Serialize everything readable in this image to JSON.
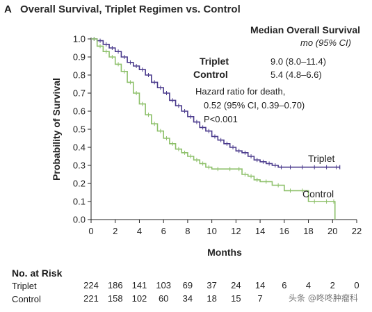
{
  "figure": {
    "panel_label": "A",
    "title": "Overall Survival, Triplet Regimen vs. Control"
  },
  "legend": {
    "header": "Median Overall Survival",
    "unit": "mo (95% CI)",
    "rows": [
      {
        "name": "Triplet",
        "value": "9.0 (8.0–11.4)"
      },
      {
        "name": "Control",
        "value": "5.4 (4.8–6.6)"
      }
    ]
  },
  "annotation": {
    "line1": "Hazard ratio for death,",
    "line2": "0.52 (95% CI, 0.39–0.70)",
    "line3": "P<0.001"
  },
  "risk_table": {
    "header": "No. at Risk",
    "rows": [
      {
        "name": "Triplet",
        "values": [
          "224",
          "186",
          "141",
          "103",
          "69",
          "37",
          "24",
          "14",
          "6",
          "4",
          "2",
          "0"
        ]
      },
      {
        "name": "Control",
        "values": [
          "221",
          "158",
          "102",
          "60",
          "34",
          "18",
          "15",
          "7",
          "",
          "",
          "",
          ""
        ]
      }
    ]
  },
  "watermark": "头条 @咚咚肿瘤科",
  "chart_data": {
    "type": "line",
    "xlabel": "Months",
    "ylabel": "Probability of Survival",
    "xlim": [
      0,
      22
    ],
    "ylim": [
      0,
      1.0
    ],
    "xticks": [
      "0",
      "2",
      "4",
      "6",
      "8",
      "10",
      "12",
      "14",
      "16",
      "18",
      "20",
      "22"
    ],
    "yticks": [
      "0.0",
      "0.1",
      "0.2",
      "0.3",
      "0.4",
      "0.5",
      "0.6",
      "0.7",
      "0.8",
      "0.9",
      "1.0"
    ],
    "grid": false,
    "series": [
      {
        "name": "Triplet",
        "color": "#4a3a8c",
        "x": [
          0,
          0.5,
          1,
          1.5,
          2,
          2.5,
          3,
          3.5,
          4,
          4.5,
          5,
          5.5,
          6,
          6.5,
          7,
          7.5,
          8,
          8.5,
          9,
          9.5,
          10,
          10.5,
          11,
          11.5,
          12,
          12.5,
          13,
          13.5,
          14,
          14.5,
          15,
          15.5,
          16,
          17,
          18,
          19,
          20,
          20.6
        ],
        "y": [
          1.0,
          0.99,
          0.97,
          0.95,
          0.93,
          0.9,
          0.87,
          0.85,
          0.83,
          0.8,
          0.76,
          0.73,
          0.7,
          0.66,
          0.63,
          0.6,
          0.57,
          0.54,
          0.51,
          0.49,
          0.46,
          0.44,
          0.42,
          0.4,
          0.38,
          0.37,
          0.35,
          0.33,
          0.32,
          0.31,
          0.3,
          0.29,
          0.29,
          0.29,
          0.29,
          0.29,
          0.29,
          0.29
        ]
      },
      {
        "name": "Control",
        "color": "#8dc06a",
        "x": [
          0,
          0.5,
          1,
          1.5,
          2,
          2.5,
          3,
          3.5,
          4,
          4.5,
          5,
          5.5,
          6,
          6.5,
          7,
          7.5,
          8,
          8.5,
          9,
          9.5,
          10,
          11,
          12,
          12.5,
          13,
          13.5,
          14,
          15,
          16,
          17,
          18,
          19,
          20,
          20.2
        ],
        "y": [
          1.0,
          0.96,
          0.93,
          0.9,
          0.86,
          0.82,
          0.76,
          0.7,
          0.64,
          0.58,
          0.53,
          0.49,
          0.45,
          0.42,
          0.39,
          0.37,
          0.35,
          0.33,
          0.31,
          0.29,
          0.28,
          0.28,
          0.28,
          0.25,
          0.24,
          0.22,
          0.21,
          0.19,
          0.16,
          0.16,
          0.1,
          0.1,
          0.1,
          0.0
        ]
      }
    ]
  }
}
